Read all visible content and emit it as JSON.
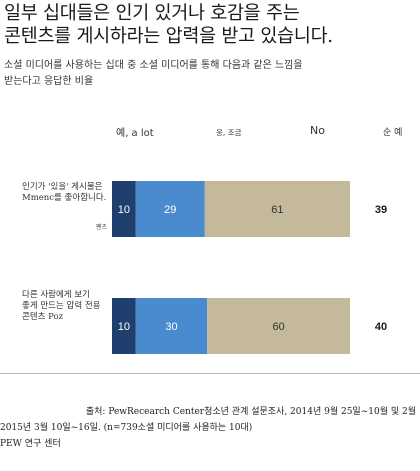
{
  "title_line1": "일부 십대들은 인기 있거나 호감을 주는",
  "title_line2": "콘텐츠를 게시하라는 압력을 받고 있습니다.",
  "subtitle_line1": "소셜 미디어를 사용하는 십대 중 소셜 미디어를 통해 다음과 같은 느낌을",
  "subtitle_line2": "받는다고 응답한 비율",
  "net_header": "순 예",
  "colors": {
    "series1": "#1f3f6e",
    "series2": "#4a8bd0",
    "series3": "#c4b99a",
    "divider": "#bdbdbd"
  },
  "chart_data": {
    "type": "bar",
    "orientation": "horizontal",
    "stacked": true,
    "categories": [
      "인기가 '있을' 게시물은 Mmenc를 좋아합니다.",
      "다른 사람에게 보기 좋게 만드는 압력 전용 콘텐츠 Poz"
    ],
    "category_lines": [
      [
        "인기가 '있을' 게시물은",
        "Mmenc를 좋아합니다."
      ],
      [
        "다른 사람에게 보기",
        "좋게 만드는 압력 전용",
        "콘텐츠 Poz"
      ]
    ],
    "category_notes": [
      "팬츠",
      ""
    ],
    "series": [
      {
        "name": "예, a lot",
        "values": [
          10,
          10
        ],
        "color": "#1f3f6e"
      },
      {
        "name": "응, 조금",
        "values": [
          29,
          30
        ],
        "color": "#4a8bd0"
      },
      {
        "name": "No",
        "values": [
          61,
          60
        ],
        "color": "#c4b99a"
      }
    ],
    "net_yes": [
      39,
      40
    ],
    "xlim": [
      0,
      100
    ],
    "legend_position": "top",
    "grid": false
  },
  "source_line1": "출처: PewRecearch Center청소년 관계 설문조사, 2014년 9월 25일~10월 및 2월",
  "source_line2": "2015년 3월 10일~16일. (n=739소셜 미디어를 사용하는 10대)",
  "source_line3": "PEW 연구 센터"
}
